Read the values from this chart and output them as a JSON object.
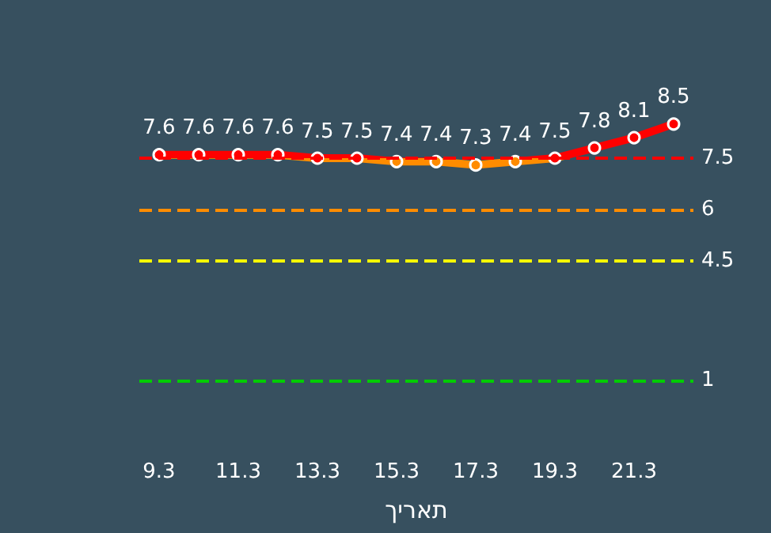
{
  "chart_data": {
    "type": "line",
    "xlabel": "תאריך",
    "categories": [
      "9.3",
      null,
      "11.3",
      null,
      "13.3",
      null,
      "15.3",
      null,
      "17.3",
      null,
      "19.3",
      null,
      "21.3",
      null
    ],
    "series": [
      {
        "values": [
          7.6,
          7.6,
          7.6,
          7.6,
          7.5,
          7.5,
          7.4,
          7.4,
          7.3,
          7.4,
          7.5,
          7.8,
          8.1,
          8.5
        ]
      }
    ],
    "tick_labels": "x",
    "data_labels": true,
    "marker": "circle",
    "line_style": "solid",
    "ref_lines": [
      {
        "axis": "y",
        "value": 7.5,
        "label": "7.5",
        "color": "#ff0000",
        "line_style": "dashed"
      },
      {
        "axis": "y",
        "value": 6,
        "label": "6",
        "color": "#ff8c00",
        "line_style": "dashed"
      },
      {
        "axis": "y",
        "value": 4.5,
        "label": "4.5",
        "color": "#ffff00",
        "line_style": "dashed"
      },
      {
        "axis": "y",
        "value": 1,
        "label": "1",
        "color": "#00cc00",
        "line_style": "dashed"
      }
    ]
  }
}
